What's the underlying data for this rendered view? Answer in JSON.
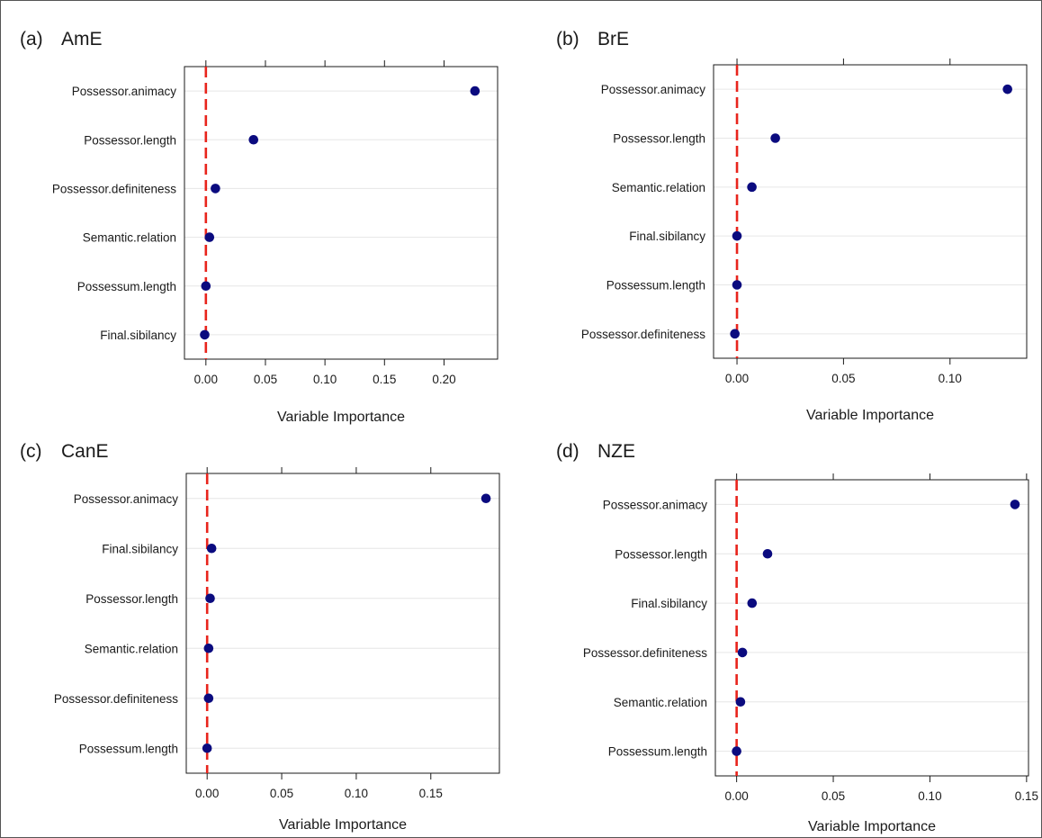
{
  "chart_data": [
    {
      "type": "scatter",
      "panel_label": "(a)",
      "title": "AmE",
      "xlabel": "Variable Importance",
      "ylabel": "",
      "xlim": [
        -0.018,
        0.245
      ],
      "xticks": [
        0.0,
        0.05,
        0.1,
        0.15,
        0.2
      ],
      "xtick_labels": [
        "0.00",
        "0.05",
        "0.10",
        "0.15",
        "0.20"
      ],
      "reference_line": 0,
      "grid": "horizontal",
      "categories": [
        "Possessor.animacy",
        "Possessor.length",
        "Possessor.definiteness",
        "Semantic.relation",
        "Possessum.length",
        "Final.sibilancy"
      ],
      "values": [
        0.226,
        0.04,
        0.008,
        0.003,
        0.0,
        -0.001
      ]
    },
    {
      "type": "scatter",
      "panel_label": "(b)",
      "title": "BrE",
      "xlabel": "Variable Importance",
      "ylabel": "",
      "xlim": [
        -0.011,
        0.136
      ],
      "xticks": [
        0.0,
        0.05,
        0.1
      ],
      "xtick_labels": [
        "0.00",
        "0.05",
        "0.10"
      ],
      "reference_line": 0,
      "grid": "horizontal",
      "categories": [
        "Possessor.animacy",
        "Possessor.length",
        "Semantic.relation",
        "Final.sibilancy",
        "Possessum.length",
        "Possessor.definiteness"
      ],
      "values": [
        0.127,
        0.018,
        0.007,
        0.0,
        0.0,
        -0.001
      ]
    },
    {
      "type": "scatter",
      "panel_label": "(c)",
      "title": "CanE",
      "xlabel": "Variable Importance",
      "ylabel": "",
      "xlim": [
        -0.014,
        0.196
      ],
      "xticks": [
        0.0,
        0.05,
        0.1,
        0.15
      ],
      "xtick_labels": [
        "0.00",
        "0.05",
        "0.10",
        "0.15"
      ],
      "reference_line": 0,
      "grid": "horizontal",
      "categories": [
        "Possessor.animacy",
        "Final.sibilancy",
        "Possessor.length",
        "Semantic.relation",
        "Possessor.definiteness",
        "Possessum.length"
      ],
      "values": [
        0.187,
        0.003,
        0.002,
        0.001,
        0.001,
        0.0
      ]
    },
    {
      "type": "scatter",
      "panel_label": "(d)",
      "title": "NZE",
      "xlabel": "Variable Importance",
      "ylabel": "",
      "xlim": [
        -0.011,
        0.151
      ],
      "xticks": [
        0.0,
        0.05,
        0.1,
        0.15
      ],
      "xtick_labels": [
        "0.00",
        "0.05",
        "0.10",
        "0.15"
      ],
      "reference_line": 0,
      "grid": "horizontal",
      "categories": [
        "Possessor.animacy",
        "Possessor.length",
        "Final.sibilancy",
        "Possessor.definiteness",
        "Semantic.relation",
        "Possessum.length"
      ],
      "values": [
        0.144,
        0.016,
        0.008,
        0.003,
        0.002,
        0.0
      ]
    }
  ],
  "colors": {
    "point": "#0b0b7f",
    "reference_line": "#e8241c",
    "grid": "#e6e6e6",
    "axis": "#1a1a1a",
    "text": "#1a1a1a",
    "background": "#ffffff",
    "outer_border": "#555555"
  }
}
